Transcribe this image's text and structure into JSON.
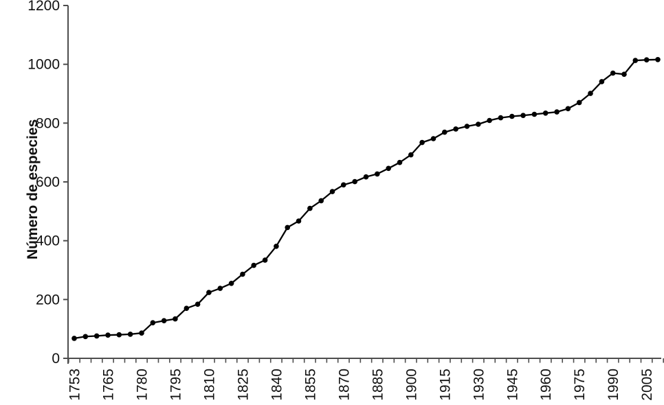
{
  "chart_data": {
    "type": "line",
    "title": "",
    "xlabel": "",
    "ylabel": "Número de especies",
    "categories": [
      "1753",
      "1755",
      "1760",
      "1765",
      "1770",
      "1775",
      "1780",
      "1785",
      "1790",
      "1795",
      "1800",
      "1805",
      "1810",
      "1815",
      "1820",
      "1825",
      "1830",
      "1835",
      "1840",
      "1845",
      "1850",
      "1855",
      "1860",
      "1865",
      "1870",
      "1875",
      "1880",
      "1885",
      "1890",
      "1895",
      "1900",
      "1905",
      "1910",
      "1915",
      "1920",
      "1925",
      "1930",
      "1935",
      "1940",
      "1945",
      "1950",
      "1955",
      "1960",
      "1965",
      "1970",
      "1975",
      "1980",
      "1985",
      "1990",
      "1995",
      "2000",
      "2005",
      "2010"
    ],
    "values": [
      68,
      74,
      76,
      79,
      80,
      82,
      86,
      121,
      128,
      134,
      170,
      184,
      224,
      238,
      255,
      286,
      316,
      334,
      381,
      445,
      467,
      510,
      536,
      567,
      590,
      601,
      617,
      627,
      646,
      666,
      692,
      734,
      747,
      769,
      780,
      789,
      796,
      809,
      818,
      823,
      826,
      830,
      834,
      838,
      849,
      870,
      901,
      941,
      970,
      966,
      1013,
      1015,
      1016
    ],
    "x_tick_labels_shown": [
      "1753",
      "1765",
      "1780",
      "1795",
      "1810",
      "1825",
      "1840",
      "1855",
      "1870",
      "1885",
      "1900",
      "1915",
      "1930",
      "1945",
      "1960",
      "1975",
      "1990",
      "2005"
    ],
    "xlabel_interval": 3,
    "yticks": [
      0,
      200,
      400,
      600,
      800,
      1000,
      1200
    ],
    "ylim": [
      0,
      1200
    ],
    "grid": "off",
    "legend": "none",
    "marker": "filled-circle",
    "x_label_rotation_deg": -90,
    "colors": {
      "line": "#000000",
      "marker": "#000000",
      "axis": "#4d4d4d",
      "text": "#111111",
      "background": "#ffffff"
    }
  }
}
